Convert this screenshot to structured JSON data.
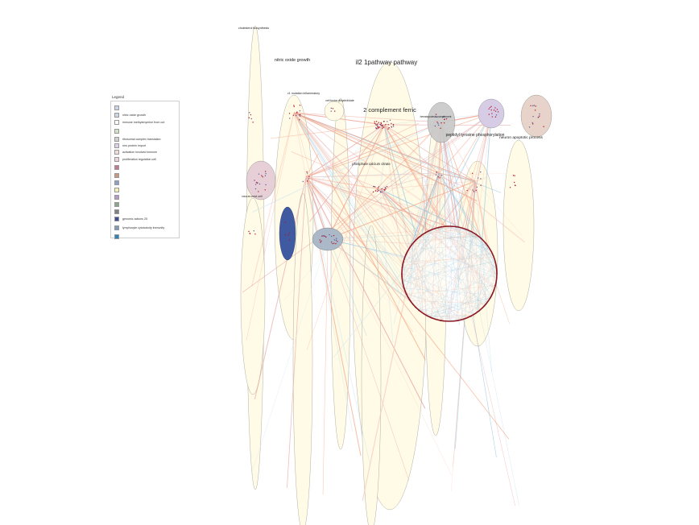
{
  "diagram": {
    "title": "il2 1pathway pathway",
    "clusters": [
      {
        "label": "cholesterol biosynthesis",
        "fill": "#fffbe6"
      },
      {
        "label": "nitric oxide growth",
        "fill": "#fffbe6"
      },
      {
        "label": "il2 1pathway pathway",
        "fill": "#fffbe6"
      },
      {
        "label": "v1 mutation inflammatory",
        "fill": "#fffbe6"
      },
      {
        "label": "cell fusion dihydrofolate",
        "fill": "#fffbe6"
      },
      {
        "label": "2 complement ferric",
        "fill": "#fffbe6"
      },
      {
        "label": "hematopoiesis complement",
        "fill": "#c8c8c8"
      },
      {
        "label": "peptidyl tyrosine phosphorylation",
        "fill": "#d6cce6"
      },
      {
        "label": "neuron apoptotic process",
        "fill": "#e7d3c9"
      },
      {
        "label": "phosphate calcium citrate",
        "fill": "#fffbe6"
      },
      {
        "label": "neural crest cell",
        "fill": "#e6cfd6"
      },
      {
        "label": "",
        "fill": "#3f5aa0"
      },
      {
        "label": "",
        "fill": "#aab8c8"
      },
      {
        "label": "",
        "fill": "#fffbe6"
      }
    ]
  },
  "legend": {
    "title": "Legend",
    "items": [
      {
        "label": "",
        "color": "#c9d5e8"
      },
      {
        "label": "nitric oxide growth",
        "color": "#c9d5e8"
      },
      {
        "label": "immune methylenyerine from out",
        "color": "#ffffff"
      },
      {
        "label": "",
        "color": "#cfe3c9"
      },
      {
        "label": "ribosomal complex translation",
        "color": "#d0d0d0"
      },
      {
        "label": "mrs protein import",
        "color": "#ddd0e8"
      },
      {
        "label": "activation involved immune",
        "color": "#f1dcd6"
      },
      {
        "label": "proliferation regulation cell",
        "color": "#ecd3dc"
      },
      {
        "label": "",
        "color": "#c07a8a"
      },
      {
        "label": "",
        "color": "#c99880"
      },
      {
        "label": "",
        "color": "#8aa2c8"
      },
      {
        "label": "",
        "color": "#f4f0b0"
      },
      {
        "label": "",
        "color": "#b49ac8"
      },
      {
        "label": "",
        "color": "#88a888"
      },
      {
        "label": "",
        "color": "#808080"
      },
      {
        "label": "genomic actions 25",
        "color": "#3a4f95"
      },
      {
        "label": "lymphocyte cytotoxicity immunity",
        "color": "#7f9ab8"
      },
      {
        "label": "",
        "color": "#2a86b8"
      }
    ]
  }
}
